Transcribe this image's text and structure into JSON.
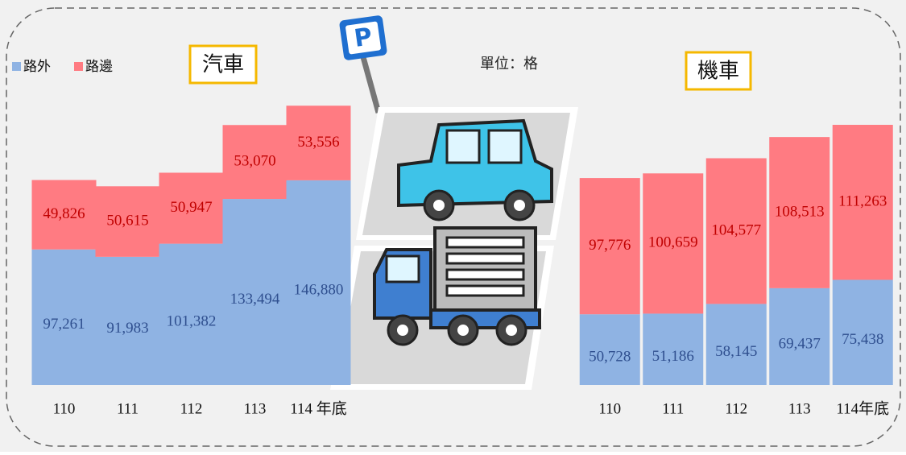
{
  "unit": "單位：格",
  "chart_data": [
    {
      "type": "stacked-bar",
      "title": "汽車",
      "categories": [
        "110",
        "111",
        "112",
        "113",
        "114 年底"
      ],
      "series": [
        {
          "name": "路外",
          "color": "#8fb3e3",
          "values": [
            97261,
            91983,
            101382,
            133494,
            146880
          ],
          "value_labels": [
            "97,261",
            "91,983",
            "101,382",
            "133,494",
            "146,880"
          ]
        },
        {
          "name": "路邊",
          "color": "#ff7b82",
          "values": [
            49826,
            50615,
            50947,
            53070,
            53556
          ],
          "value_labels": [
            "49,826",
            "50,615",
            "50,947",
            "53,070",
            "53,556"
          ]
        }
      ]
    },
    {
      "type": "stacked-bar",
      "title": "機車",
      "categories": [
        "110",
        "111",
        "112",
        "113",
        "114年底"
      ],
      "series": [
        {
          "color": "#8fb3e3",
          "values": [
            50728,
            51186,
            58145,
            69437,
            75438
          ],
          "value_labels": [
            "50,728",
            "51,186",
            "58,145",
            "69,437",
            "75,438"
          ]
        },
        {
          "color": "#ff7b82",
          "values": [
            97776,
            100659,
            104577,
            108513,
            111263
          ],
          "value_labels": [
            "97,776",
            "100,659",
            "104,577",
            "108,513",
            "111,263"
          ]
        }
      ]
    }
  ]
}
